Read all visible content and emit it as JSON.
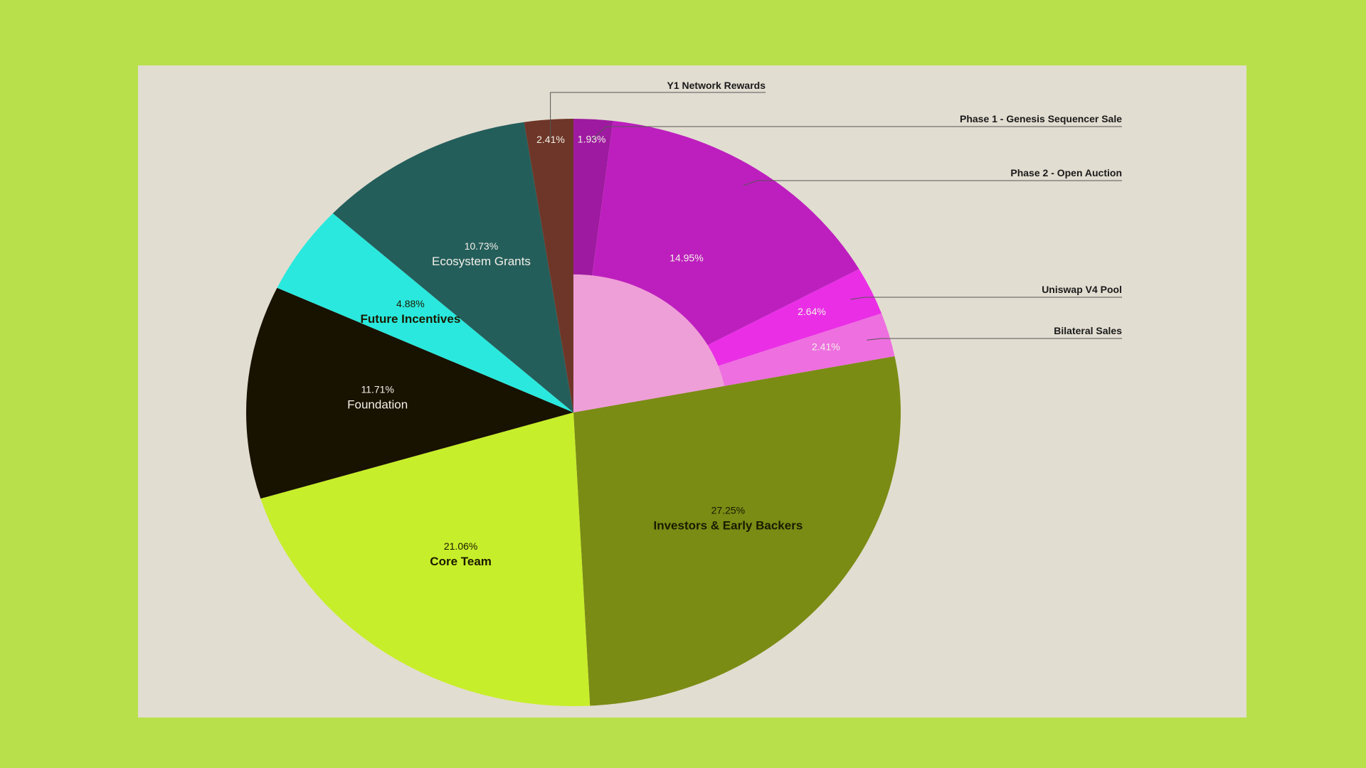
{
  "chart_data": {
    "type": "pie",
    "title": "",
    "slices": [
      {
        "label": "Phase 1 - Genesis Sequencer Sale",
        "value": 1.93,
        "value_label": "1.93%",
        "color": "#9e1aa0"
      },
      {
        "label": "Phase 2 - Open Auction",
        "value": 14.95,
        "value_label": "14.95%",
        "color": "#bd1fbe"
      },
      {
        "label": "Uniswap V4 Pool",
        "value": 2.64,
        "value_label": "2.64%",
        "color": "#ea2ee6"
      },
      {
        "label": "Bilateral Sales",
        "value": 2.41,
        "value_label": "2.41%",
        "color": "#ee6fe0"
      },
      {
        "label": "Investors & Early Backers",
        "value": 27.25,
        "value_label": "27.25%",
        "color": "#7a8c14"
      },
      {
        "label": "Core Team",
        "value": 21.06,
        "value_label": "21.06%",
        "color": "#c7ee2a"
      },
      {
        "label": "Foundation",
        "value": 11.71,
        "value_label": "11.71%",
        "color": "#181200"
      },
      {
        "label": "Future Incentives",
        "value": 4.88,
        "value_label": "4.88%",
        "color": "#2ae8dd"
      },
      {
        "label": "Ecosystem Grants",
        "value": 10.73,
        "value_label": "10.73%",
        "color": "#245e5b"
      },
      {
        "label": "Y1 Network Rewards",
        "value": 2.41,
        "value_label": "2.41%",
        "color": "#6e3628"
      }
    ],
    "inner_highlight_color": "#ef9fd8",
    "legend": "callouts-right"
  }
}
